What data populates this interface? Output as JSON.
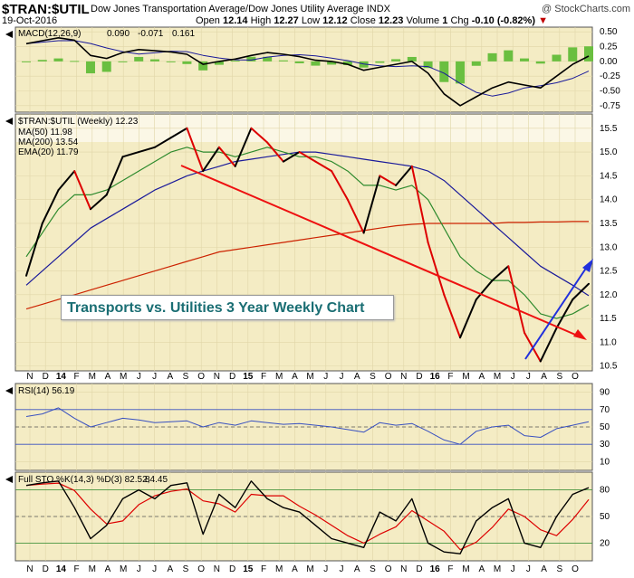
{
  "header": {
    "symbol": "$TRAN:$UTIL",
    "name": "Dow Jones Transportation Average/Dow Jones Utility Average INDX",
    "watermark": "@ StockCharts.com",
    "date": "19-Oct-2016",
    "open_label": "Open",
    "open": "12.14",
    "high_label": "High",
    "high": "12.27",
    "low_label": "Low",
    "low": "12.12",
    "close_label": "Close",
    "close": "12.23",
    "volume_label": "Volume",
    "volume": "1",
    "chg_label": "Chg",
    "chg": "-0.10 (-0.82%)",
    "chg_marker": "▼"
  },
  "annotation": "Transports vs. Utilities 3 Year Weekly Chart",
  "colors": {
    "panel_bg": "#f4ecc4",
    "price": "#000000",
    "price_red": "#dd0000",
    "ma50": "#1a1a9a",
    "ma200": "#cc2200",
    "ema20": "#2d8a2d",
    "macd_hist": "#6abf40",
    "rsi": "#3850c0",
    "sto_d": "#dd0000",
    "trend_red": "#ee1111",
    "trend_blue": "#2030dd"
  },
  "macd_panel": {
    "legend": "MACD(12,26,9)",
    "v1": "0.090",
    "v2": "-0.071",
    "v3": "0.161",
    "ticks": [
      "0.50",
      "0.25",
      "0.00",
      "-0.25",
      "-0.50",
      "-0.75"
    ]
  },
  "price_panel": {
    "legend": "$TRAN:$UTIL (Weekly) 12.23",
    "ma50": "MA(50) 11.98",
    "ma200": "MA(200) 13.54",
    "ema20": "EMA(20) 11.79",
    "ticks": [
      "15.5",
      "15.0",
      "14.5",
      "14.0",
      "13.5",
      "13.0",
      "12.5",
      "12.0",
      "11.5",
      "11.0",
      "10.5"
    ]
  },
  "rsi_panel": {
    "legend": "RSI(14) 56.19",
    "ticks": [
      "90",
      "70",
      "50",
      "30",
      "10"
    ]
  },
  "sto_panel": {
    "legend": "Full STO %K(14,3) %D(3) 82.52,",
    "legend2": "84.45",
    "ticks": [
      "80",
      "50",
      "20"
    ]
  },
  "x_axis_labels": [
    "N",
    "D",
    "14",
    "F",
    "M",
    "A",
    "M",
    "J",
    "J",
    "A",
    "S",
    "O",
    "N",
    "D",
    "15",
    "F",
    "M",
    "A",
    "M",
    "J",
    "J",
    "A",
    "S",
    "O",
    "N",
    "D",
    "16",
    "F",
    "M",
    "A",
    "M",
    "J",
    "J",
    "A",
    "S",
    "O"
  ],
  "chart_data": {
    "type": "line",
    "x": [
      "2013-11",
      "2013-12",
      "2014-01",
      "2014-02",
      "2014-03",
      "2014-04",
      "2014-05",
      "2014-06",
      "2014-07",
      "2014-08",
      "2014-09",
      "2014-10",
      "2014-11",
      "2014-12",
      "2015-01",
      "2015-02",
      "2015-03",
      "2015-04",
      "2015-05",
      "2015-06",
      "2015-07",
      "2015-08",
      "2015-09",
      "2015-10",
      "2015-11",
      "2015-12",
      "2016-01",
      "2016-02",
      "2016-03",
      "2016-04",
      "2016-05",
      "2016-06",
      "2016-07",
      "2016-08",
      "2016-09",
      "2016-10"
    ],
    "series": [
      {
        "name": "$TRAN:$UTIL",
        "values": [
          12.4,
          13.5,
          14.2,
          14.6,
          13.8,
          14.1,
          14.9,
          15.0,
          15.1,
          15.3,
          15.5,
          14.6,
          15.1,
          14.7,
          15.5,
          15.2,
          14.8,
          15.0,
          14.8,
          14.6,
          14.0,
          13.3,
          14.5,
          14.3,
          14.7,
          13.1,
          12.0,
          11.1,
          11.9,
          12.3,
          12.6,
          11.2,
          10.6,
          11.3,
          11.9,
          12.23
        ]
      },
      {
        "name": "MA(50)",
        "values": [
          12.2,
          12.5,
          12.8,
          13.1,
          13.4,
          13.6,
          13.8,
          14.0,
          14.2,
          14.35,
          14.5,
          14.6,
          14.7,
          14.8,
          14.85,
          14.9,
          14.95,
          15.0,
          15.0,
          14.95,
          14.9,
          14.85,
          14.8,
          14.75,
          14.7,
          14.6,
          14.4,
          14.1,
          13.8,
          13.5,
          13.2,
          12.9,
          12.6,
          12.4,
          12.2,
          11.98
        ]
      },
      {
        "name": "MA(200)",
        "values": [
          11.7,
          11.8,
          11.9,
          12.0,
          12.1,
          12.2,
          12.3,
          12.4,
          12.5,
          12.6,
          12.7,
          12.8,
          12.9,
          12.95,
          13.0,
          13.05,
          13.1,
          13.15,
          13.2,
          13.25,
          13.3,
          13.35,
          13.4,
          13.45,
          13.48,
          13.5,
          13.5,
          13.5,
          13.5,
          13.5,
          13.52,
          13.52,
          13.53,
          13.53,
          13.54,
          13.54
        ]
      },
      {
        "name": "EMA(20)",
        "values": [
          12.8,
          13.3,
          13.8,
          14.1,
          14.1,
          14.2,
          14.4,
          14.6,
          14.8,
          15.0,
          15.1,
          15.0,
          15.0,
          14.9,
          15.0,
          15.1,
          15.0,
          14.9,
          14.9,
          14.8,
          14.6,
          14.3,
          14.3,
          14.2,
          14.3,
          14.0,
          13.4,
          12.8,
          12.5,
          12.3,
          12.3,
          12.0,
          11.6,
          11.5,
          11.6,
          11.79
        ]
      }
    ],
    "macd_values": [
      0.3,
      0.35,
      0.4,
      0.36,
      0.1,
      0.05,
      0.15,
      0.2,
      0.18,
      0.16,
      0.12,
      -0.05,
      0.0,
      0.04,
      0.1,
      0.15,
      0.12,
      0.08,
      0.02,
      0.0,
      -0.05,
      -0.15,
      -0.1,
      -0.05,
      0.0,
      -0.2,
      -0.55,
      -0.75,
      -0.6,
      -0.45,
      -0.35,
      -0.4,
      -0.45,
      -0.25,
      -0.05,
      0.09
    ],
    "rsi_values": [
      62,
      65,
      72,
      60,
      50,
      55,
      60,
      58,
      55,
      56,
      57,
      50,
      55,
      52,
      57,
      55,
      53,
      54,
      52,
      50,
      47,
      44,
      55,
      52,
      54,
      45,
      35,
      30,
      45,
      50,
      52,
      40,
      38,
      48,
      52,
      56
    ],
    "sto_values": [
      85,
      88,
      90,
      60,
      25,
      40,
      70,
      80,
      70,
      85,
      88,
      30,
      75,
      60,
      90,
      70,
      60,
      55,
      40,
      25,
      20,
      15,
      55,
      45,
      70,
      20,
      10,
      8,
      45,
      60,
      70,
      20,
      15,
      50,
      75,
      82.5
    ],
    "title": "$TRAN:$UTIL",
    "ylim": [
      10.4,
      15.8
    ],
    "xlabel": "",
    "ylabel": ""
  }
}
